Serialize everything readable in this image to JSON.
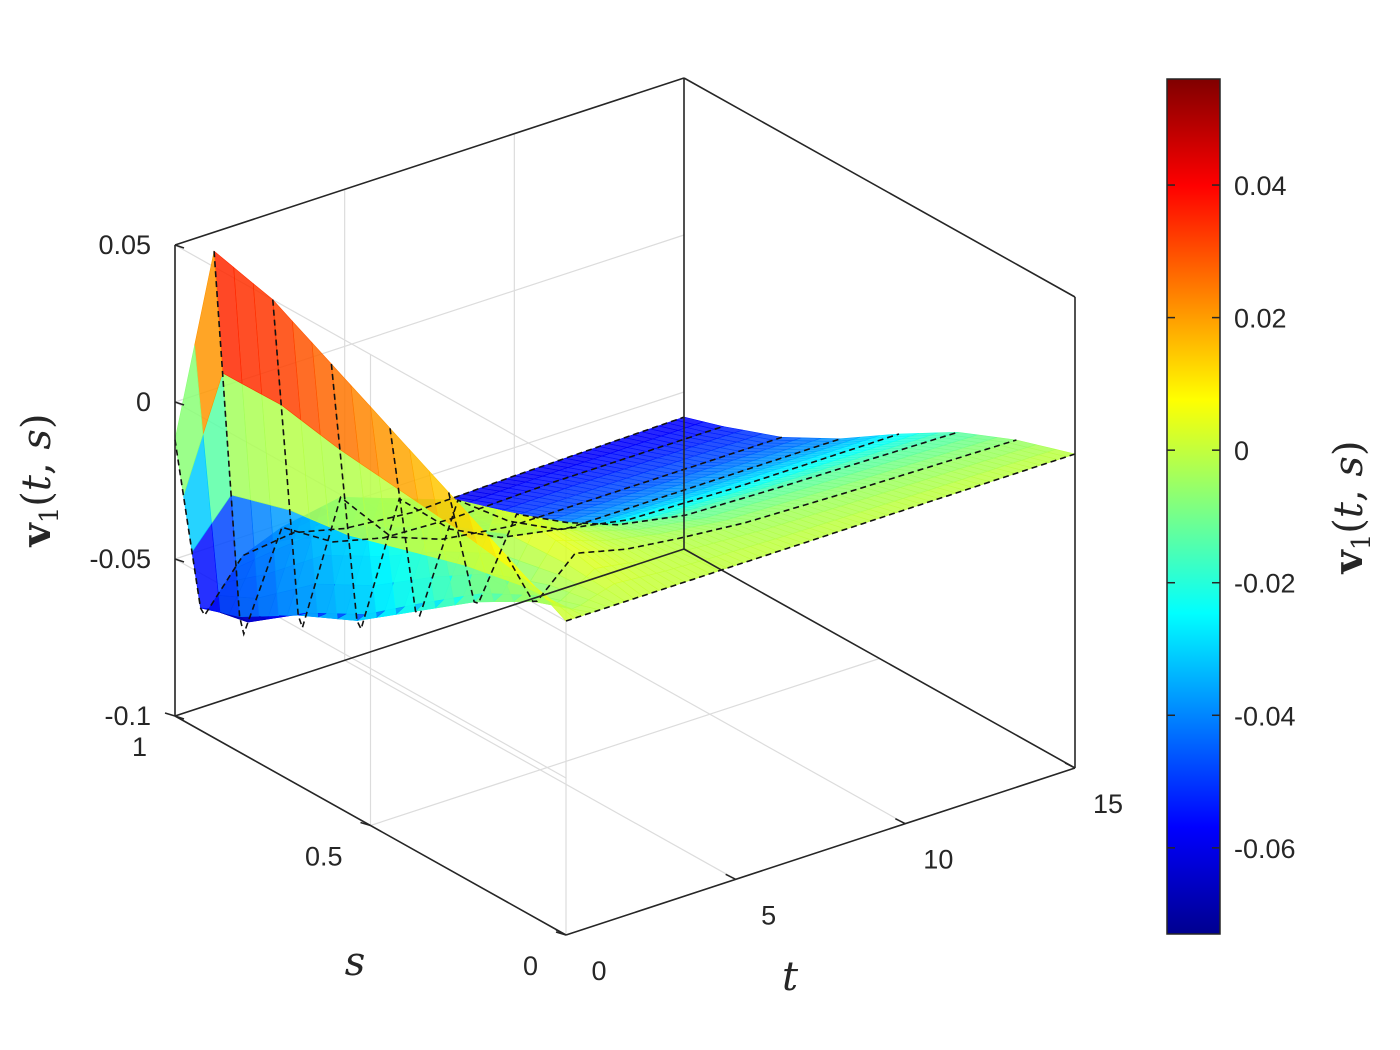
{
  "chart_data": {
    "type": "surface",
    "colormap": "jet",
    "x": {
      "label": "t",
      "range": [
        0,
        15
      ],
      "ticks": [
        "0",
        "5",
        "10",
        "15"
      ]
    },
    "y": {
      "label": "s",
      "range": [
        0,
        1
      ],
      "ticks": [
        "0",
        "0.5",
        "1"
      ]
    },
    "z": {
      "label": "v1(t, s)",
      "range": [
        -0.1,
        0.05
      ],
      "ticks": [
        "-0.1",
        "-0.05",
        "0",
        "0.05"
      ]
    },
    "colorbar": {
      "label": "v1(t, s)",
      "range": [
        -0.073,
        0.056
      ],
      "ticks": [
        "-0.06",
        "-0.04",
        "-0.02",
        "0",
        "0.02",
        "0.04"
      ]
    },
    "grid": true,
    "dashed_lines": "constant-s contour lines on the surface",
    "surface_profiles": [
      {
        "s": 1.0,
        "points": [
          [
            0,
            -0.012
          ],
          [
            0.8,
            -0.072
          ],
          [
            2,
            -0.056
          ],
          [
            3.5,
            -0.054
          ],
          [
            5,
            -0.058
          ],
          [
            7,
            -0.06
          ],
          [
            10,
            -0.059
          ],
          [
            15,
            -0.058
          ]
        ]
      },
      {
        "s": 0.9,
        "points": [
          [
            0,
            0.055
          ],
          [
            0.8,
            -0.072
          ],
          [
            2,
            -0.04
          ],
          [
            3.5,
            -0.05
          ],
          [
            5,
            -0.054
          ],
          [
            7,
            -0.055
          ],
          [
            10,
            -0.054
          ],
          [
            15,
            -0.054
          ]
        ]
      },
      {
        "s": 0.75,
        "points": [
          [
            0,
            0.05
          ],
          [
            0.8,
            -0.06
          ],
          [
            2,
            -0.02
          ],
          [
            3.5,
            -0.038
          ],
          [
            5,
            -0.044
          ],
          [
            7,
            -0.047
          ],
          [
            10,
            -0.047
          ],
          [
            15,
            -0.047
          ]
        ]
      },
      {
        "s": 0.6,
        "points": [
          [
            0,
            0.04
          ],
          [
            0.8,
            -0.05
          ],
          [
            2,
            -0.01
          ],
          [
            3.5,
            -0.025
          ],
          [
            5,
            -0.033
          ],
          [
            7,
            -0.037
          ],
          [
            10,
            -0.037
          ],
          [
            15,
            -0.037
          ]
        ]
      },
      {
        "s": 0.45,
        "points": [
          [
            0,
            0.03
          ],
          [
            0.8,
            -0.035
          ],
          [
            2,
            0.0
          ],
          [
            3.5,
            -0.012
          ],
          [
            5,
            -0.02
          ],
          [
            7,
            -0.024
          ],
          [
            10,
            -0.025
          ],
          [
            15,
            -0.025
          ]
        ]
      },
      {
        "s": 0.3,
        "points": [
          [
            0,
            0.02
          ],
          [
            0.8,
            -0.02
          ],
          [
            2,
            0.006
          ],
          [
            3.5,
            -0.002
          ],
          [
            5,
            -0.008
          ],
          [
            7,
            -0.012
          ],
          [
            10,
            -0.013
          ],
          [
            15,
            -0.014
          ]
        ]
      },
      {
        "s": 0.15,
        "points": [
          [
            0,
            0.01
          ],
          [
            0.8,
            -0.008
          ],
          [
            2,
            0.004
          ],
          [
            3.5,
            0.0
          ],
          [
            5,
            -0.002
          ],
          [
            7,
            -0.004
          ],
          [
            10,
            -0.005
          ],
          [
            15,
            -0.006
          ]
        ]
      },
      {
        "s": 0.0,
        "points": [
          [
            0,
            0.0
          ],
          [
            0.8,
            0.0
          ],
          [
            2,
            0.0
          ],
          [
            3.5,
            0.0
          ],
          [
            5,
            0.0
          ],
          [
            7,
            0.0
          ],
          [
            10,
            0.0
          ],
          [
            15,
            0.0
          ]
        ]
      }
    ]
  }
}
